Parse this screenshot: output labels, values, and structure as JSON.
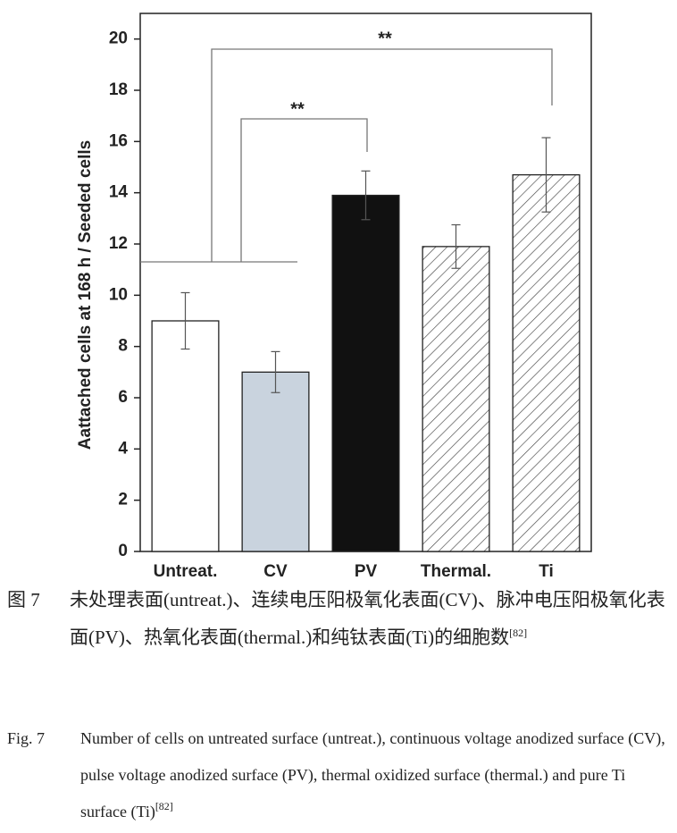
{
  "chart_data": {
    "type": "bar",
    "y_label": "Aattached cells at 168 h / Seeded cells",
    "categories": [
      "Untreat.",
      "CV",
      "PV",
      "Thermal.",
      "Ti"
    ],
    "values": [
      9.0,
      7.0,
      13.9,
      11.9,
      14.7
    ],
    "errors": [
      1.1,
      0.8,
      0.95,
      0.85,
      1.45
    ],
    "colors": [
      "#ffffff",
      "#c9d3de",
      "#111111",
      "hatch",
      "hatch"
    ],
    "ylim": [
      0,
      21
    ],
    "yticks": [
      0,
      2,
      4,
      6,
      8,
      10,
      12,
      14,
      16,
      18,
      20
    ],
    "annotations": [
      {
        "text": "**"
      },
      {
        "text": "**"
      }
    ]
  },
  "caption": {
    "cn_label": "图 7",
    "cn_text": "未处理表面(untreat.)、连续电压阳极氧化表面(CV)、脉冲电压阳极氧化表面(PV)、热氧化表面(thermal.)和纯钛表面(Ti)的细胞数",
    "cn_ref": "[82]",
    "en_label": "Fig. 7",
    "en_text": "Number of cells on untreated surface (untreat.), continuous voltage anodized surface (CV), pulse voltage anodized surface (PV), thermal oxidized surface (thermal.) and pure Ti surface (Ti)",
    "en_ref": "[82]"
  }
}
